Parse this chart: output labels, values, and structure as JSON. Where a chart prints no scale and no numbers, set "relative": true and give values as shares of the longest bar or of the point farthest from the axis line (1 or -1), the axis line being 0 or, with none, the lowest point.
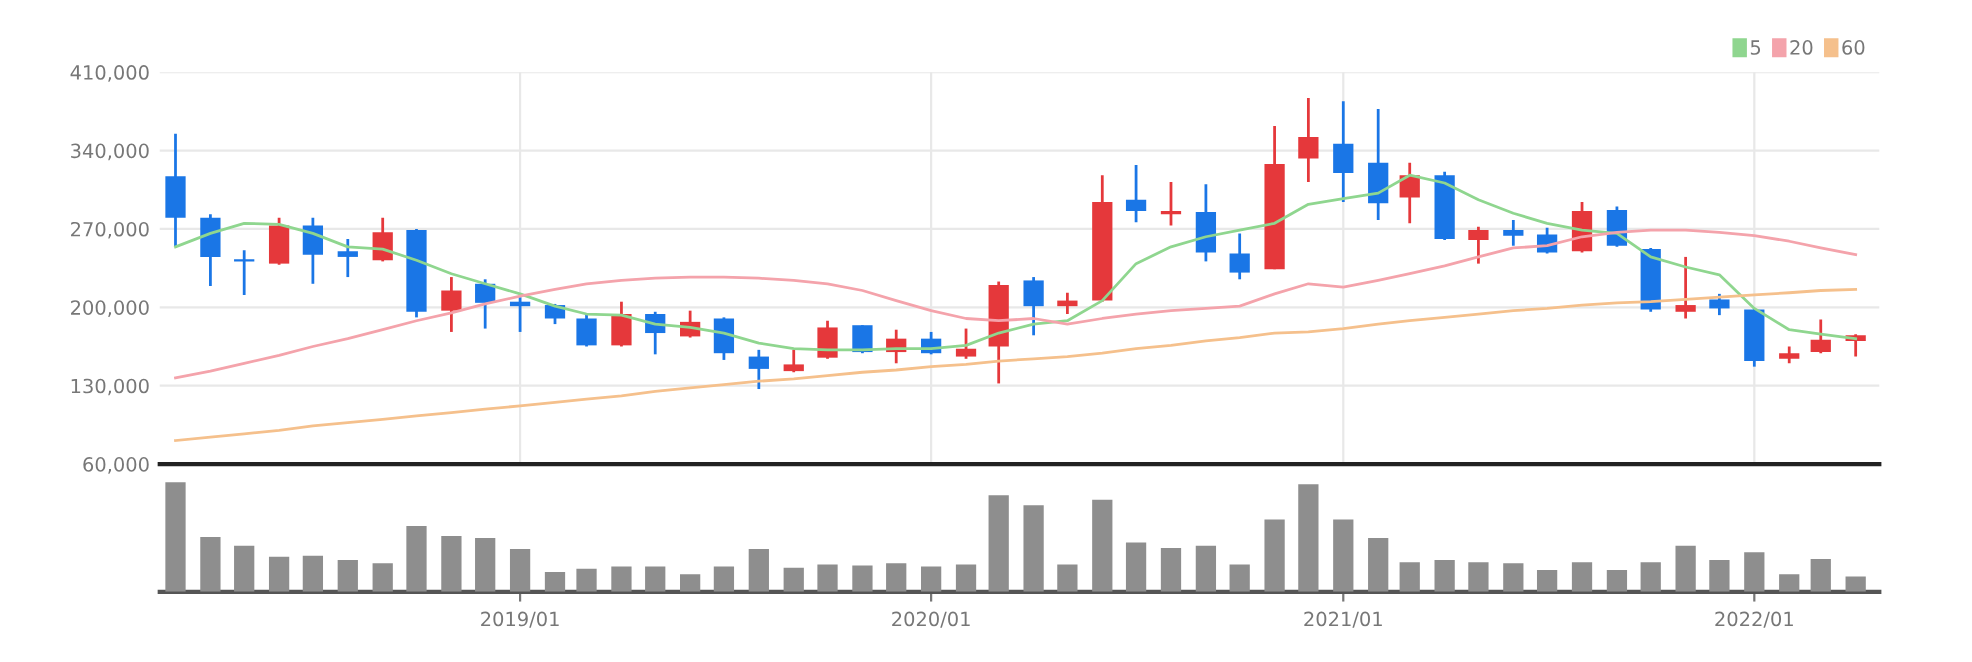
{
  "chart_data": [
    {
      "type": "candlestick",
      "x": [
        "2018-03",
        "2018-04",
        "2018-05",
        "2018-06",
        "2018-07",
        "2018-08",
        "2018-09",
        "2018-10",
        "2018-11",
        "2018-12",
        "2019-01",
        "2019-02",
        "2019-03",
        "2019-04",
        "2019-05",
        "2019-06",
        "2019-07",
        "2019-08",
        "2019-09",
        "2019-10",
        "2019-11",
        "2019-12",
        "2020-01",
        "2020-02",
        "2020-03",
        "2020-04",
        "2020-05",
        "2020-06",
        "2020-07",
        "2020-08",
        "2020-09",
        "2020-10",
        "2020-11",
        "2020-12",
        "2021-01",
        "2021-02",
        "2021-03",
        "2021-04",
        "2021-05",
        "2021-06",
        "2021-07",
        "2021-08",
        "2021-09",
        "2021-10",
        "2021-11",
        "2021-12",
        "2022-01",
        "2022-02",
        "2022-03",
        "2022-04"
      ],
      "ohlc": [
        [
          317000,
          355000,
          254000,
          280000
        ],
        [
          280000,
          283000,
          219000,
          245000
        ],
        [
          243000,
          251000,
          211000,
          241000
        ],
        [
          239000,
          280000,
          238000,
          273000
        ],
        [
          273000,
          280000,
          221000,
          247000
        ],
        [
          250000,
          261000,
          227000,
          245000
        ],
        [
          242000,
          280000,
          241000,
          267000
        ],
        [
          269000,
          270000,
          191000,
          196000
        ],
        [
          197000,
          227000,
          178000,
          215000
        ],
        [
          221000,
          225000,
          181000,
          204000
        ],
        [
          205000,
          209000,
          178000,
          201000
        ],
        [
          202000,
          203000,
          185000,
          190000
        ],
        [
          190000,
          194000,
          165000,
          166000
        ],
        [
          166000,
          205000,
          165000,
          194000
        ],
        [
          194000,
          196000,
          158000,
          177000
        ],
        [
          174000,
          197000,
          173000,
          187000
        ],
        [
          190000,
          191000,
          153000,
          159000
        ],
        [
          156000,
          162000,
          127000,
          145000
        ],
        [
          143000,
          162000,
          142000,
          149000
        ],
        [
          155000,
          188000,
          154000,
          182000
        ],
        [
          184000,
          184000,
          159000,
          160000
        ],
        [
          160000,
          180000,
          150000,
          172000
        ],
        [
          172000,
          178000,
          158000,
          159000
        ],
        [
          156000,
          181000,
          154000,
          163000
        ],
        [
          165000,
          223000,
          132000,
          220000
        ],
        [
          224000,
          227000,
          175000,
          201000
        ],
        [
          201000,
          213000,
          194000,
          206000
        ],
        [
          206000,
          318000,
          205000,
          294000
        ],
        [
          296000,
          327000,
          276000,
          286000
        ],
        [
          283000,
          312000,
          273000,
          286000
        ],
        [
          285000,
          310000,
          241000,
          249000
        ],
        [
          248000,
          266000,
          225000,
          231000
        ],
        [
          234000,
          362000,
          234000,
          328000
        ],
        [
          333000,
          387000,
          312000,
          352000
        ],
        [
          346000,
          384000,
          294000,
          320000
        ],
        [
          329000,
          377000,
          278000,
          293000
        ],
        [
          298000,
          329000,
          275000,
          318000
        ],
        [
          318000,
          321000,
          260000,
          261000
        ],
        [
          260000,
          272000,
          239000,
          269000
        ],
        [
          269000,
          278000,
          255000,
          264000
        ],
        [
          265000,
          271000,
          248000,
          249000
        ],
        [
          250000,
          294000,
          249000,
          286000
        ],
        [
          287000,
          290000,
          254000,
          255000
        ],
        [
          252000,
          253000,
          196000,
          198000
        ],
        [
          196000,
          245000,
          190000,
          202000
        ],
        [
          207000,
          212000,
          193000,
          199000
        ],
        [
          198000,
          199000,
          147000,
          152000
        ],
        [
          154000,
          165000,
          150000,
          159000
        ],
        [
          160000,
          189000,
          159000,
          171000
        ],
        [
          170000,
          176000,
          156000,
          175000
        ]
      ],
      "colors": [
        "#1a76e6",
        "#1a76e6",
        "#1a76e6",
        "#e5383b",
        "#1a76e6",
        "#1a76e6",
        "#e5383b",
        "#1a76e6",
        "#e5383b",
        "#1a76e6",
        "#1a76e6",
        "#1a76e6",
        "#1a76e6",
        "#e5383b",
        "#1a76e6",
        "#e5383b",
        "#1a76e6",
        "#1a76e6",
        "#e5383b",
        "#e5383b",
        "#1a76e6",
        "#e5383b",
        "#1a76e6",
        "#e5383b",
        "#e5383b",
        "#1a76e6",
        "#e5383b",
        "#e5383b",
        "#1a76e6",
        "#e5383b",
        "#1a76e6",
        "#1a76e6",
        "#e5383b",
        "#e5383b",
        "#1a76e6",
        "#1a76e6",
        "#e5383b",
        "#1a76e6",
        "#e5383b",
        "#1a76e6",
        "#1a76e6",
        "#e5383b",
        "#1a76e6",
        "#1a76e6",
        "#e5383b",
        "#1a76e6",
        "#1a76e6",
        "#e5383b",
        "#e5383b",
        "#e5383b"
      ],
      "series": [
        {
          "type": "line",
          "name": "5",
          "color": "#8fd68f",
          "values": [
            254000,
            266000,
            275000,
            274000,
            266000,
            254000,
            252000,
            242000,
            230000,
            221000,
            212000,
            201000,
            194000,
            193000,
            185000,
            182000,
            177000,
            168000,
            163000,
            162000,
            162000,
            163000,
            163000,
            166000,
            177000,
            185000,
            188000,
            206000,
            239000,
            254000,
            263000,
            269000,
            275000,
            292000,
            297000,
            302000,
            318000,
            311000,
            296000,
            284000,
            275000,
            269000,
            266000,
            245000,
            236000,
            229000,
            199000,
            180000,
            176000,
            172000
          ]
        },
        {
          "type": "line",
          "name": "20",
          "color": "#f4a3ab",
          "values": [
            137000,
            143000,
            150000,
            157000,
            165000,
            172000,
            180000,
            188000,
            195000,
            203000,
            210000,
            216000,
            221000,
            224000,
            226000,
            227000,
            227000,
            226000,
            224000,
            221000,
            215000,
            206000,
            197000,
            190000,
            188000,
            190000,
            185000,
            190000,
            194000,
            197000,
            199000,
            201000,
            212000,
            221000,
            218000,
            224000,
            230000,
            237000,
            245000,
            253000,
            255000,
            263000,
            267000,
            269000,
            269000,
            267000,
            264000,
            259000,
            253000,
            247000
          ]
        },
        {
          "type": "line",
          "name": "60",
          "color": "#f5c08c",
          "values": [
            81000,
            84000,
            87000,
            90000,
            94000,
            97000,
            100000,
            103000,
            106000,
            109000,
            112000,
            115000,
            118000,
            121000,
            125000,
            128000,
            131000,
            134000,
            136000,
            139000,
            142000,
            144000,
            147000,
            149000,
            152000,
            154000,
            156000,
            159000,
            163000,
            166000,
            170000,
            173000,
            177000,
            178000,
            181000,
            185000,
            188000,
            191000,
            194000,
            197000,
            199000,
            202000,
            204000,
            205000,
            207000,
            209000,
            211000,
            213000,
            215000,
            216000
          ]
        }
      ],
      "xlim": [
        "2018-02-15",
        "2022-04-22"
      ],
      "xticks": [
        {
          "value": "2019-01",
          "label": null
        },
        {
          "value": "2020-01",
          "label": null
        },
        {
          "value": "2021-01",
          "label": null
        },
        {
          "value": "2022-01",
          "label": null
        }
      ],
      "ylim": [
        60000,
        410000
      ],
      "yticks": [
        {
          "value": 60000,
          "label": "60,000"
        },
        {
          "value": 130000,
          "label": "130,000"
        },
        {
          "value": 200000,
          "label": "200,000"
        },
        {
          "value": 270000,
          "label": "270,000"
        },
        {
          "value": 340000,
          "label": "340,000"
        },
        {
          "value": 410000,
          "label": "410,000"
        }
      ],
      "tick_labels": "y",
      "grid": true,
      "legend": "top right"
    },
    {
      "type": "bar",
      "relative": true,
      "color": "#8e8e8e",
      "x": [
        "2018-03",
        "2018-04",
        "2018-05",
        "2018-06",
        "2018-07",
        "2018-08",
        "2018-09",
        "2018-10",
        "2018-11",
        "2018-12",
        "2019-01",
        "2019-02",
        "2019-03",
        "2019-04",
        "2019-05",
        "2019-06",
        "2019-07",
        "2019-08",
        "2019-09",
        "2019-10",
        "2019-11",
        "2019-12",
        "2020-01",
        "2020-02",
        "2020-03",
        "2020-04",
        "2020-05",
        "2020-06",
        "2020-07",
        "2020-08",
        "2020-09",
        "2020-10",
        "2020-11",
        "2020-12",
        "2021-01",
        "2021-02",
        "2021-03",
        "2021-04",
        "2021-05",
        "2021-06",
        "2021-07",
        "2021-08",
        "2021-09",
        "2021-10",
        "2021-11",
        "2021-12",
        "2022-01",
        "2022-02",
        "2022-03",
        "2022-04"
      ],
      "values": [
        1.0,
        0.5,
        0.42,
        0.32,
        0.33,
        0.29,
        0.26,
        0.6,
        0.51,
        0.49,
        0.39,
        0.18,
        0.21,
        0.23,
        0.23,
        0.16,
        0.23,
        0.39,
        0.22,
        0.25,
        0.24,
        0.26,
        0.23,
        0.25,
        0.88,
        0.79,
        0.25,
        0.84,
        0.45,
        0.4,
        0.42,
        0.25,
        0.66,
        0.98,
        0.66,
        0.49,
        0.27,
        0.29,
        0.27,
        0.26,
        0.2,
        0.27,
        0.2,
        0.27,
        0.42,
        0.29,
        0.36,
        0.16,
        0.3,
        0.14
      ],
      "xlim": [
        "2018-02-15",
        "2022-04-22"
      ],
      "xticks": [
        {
          "value": "2019-01",
          "label": "2019/01"
        },
        {
          "value": "2020-01",
          "label": "2020/01"
        },
        {
          "value": "2021-01",
          "label": "2021/01"
        },
        {
          "value": "2022-01",
          "label": "2022/01"
        }
      ],
      "tick_labels": "x"
    }
  ]
}
